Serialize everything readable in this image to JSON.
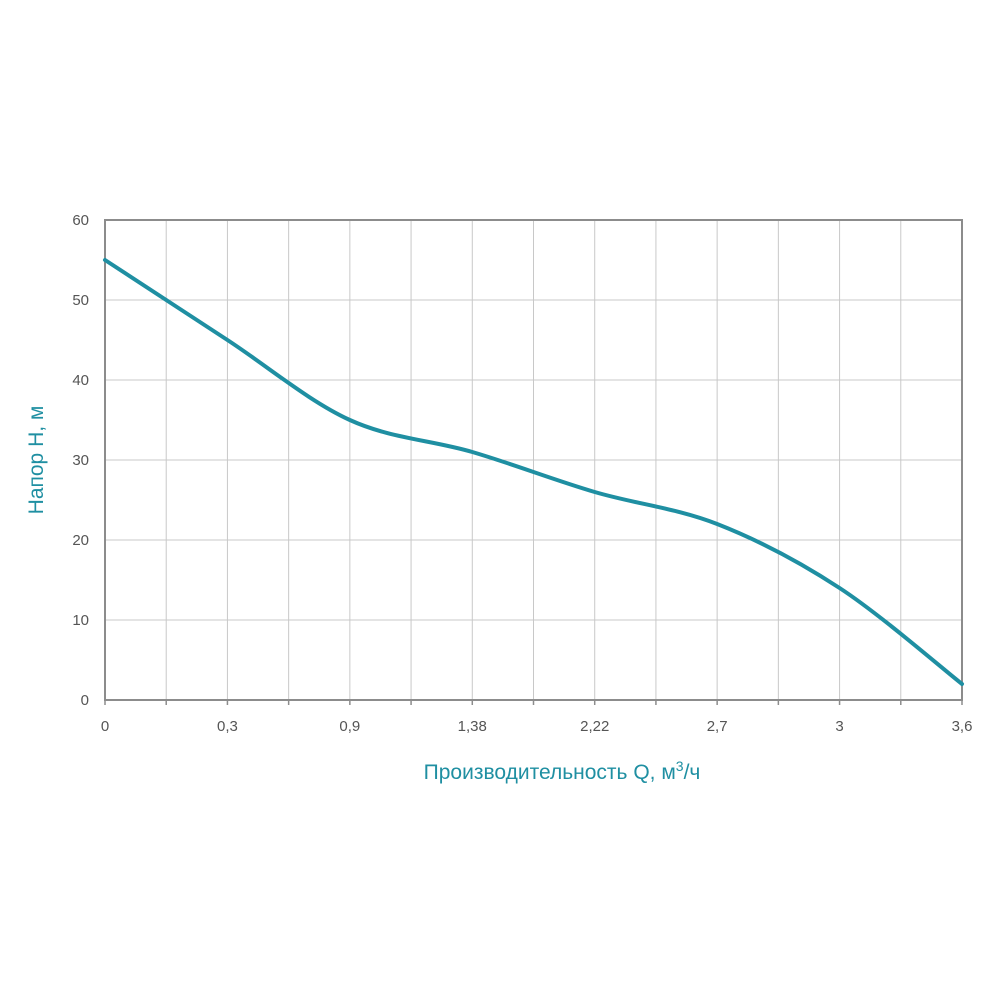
{
  "chart_data": {
    "type": "line",
    "title": "",
    "xlabel": "Производительность Q, м",
    "xlabel_superscript": "3",
    "xlabel_suffix": "/ч",
    "ylabel": "Напор H, м",
    "x_tick_labels": [
      "0",
      "0,3",
      "0,9",
      "1,38",
      "2,22",
      "2,7",
      "3",
      "3,6"
    ],
    "y_tick_labels": [
      "0",
      "10",
      "20",
      "30",
      "40",
      "50",
      "60"
    ],
    "ylim": [
      0,
      60
    ],
    "grid": true,
    "x": [
      "0",
      "0,3",
      "0,9",
      "1,38",
      "2,22",
      "2,7",
      "3",
      "3,6"
    ],
    "series": [
      {
        "values": [
          55,
          45,
          35,
          31,
          26,
          22,
          14,
          2
        ]
      }
    ],
    "colors": {
      "line": "#1f8fa2",
      "axis_title": "#1f8fa2",
      "grid": "#c8c8c8",
      "frame": "#8c8c8c",
      "tick_text": "#555555"
    }
  }
}
